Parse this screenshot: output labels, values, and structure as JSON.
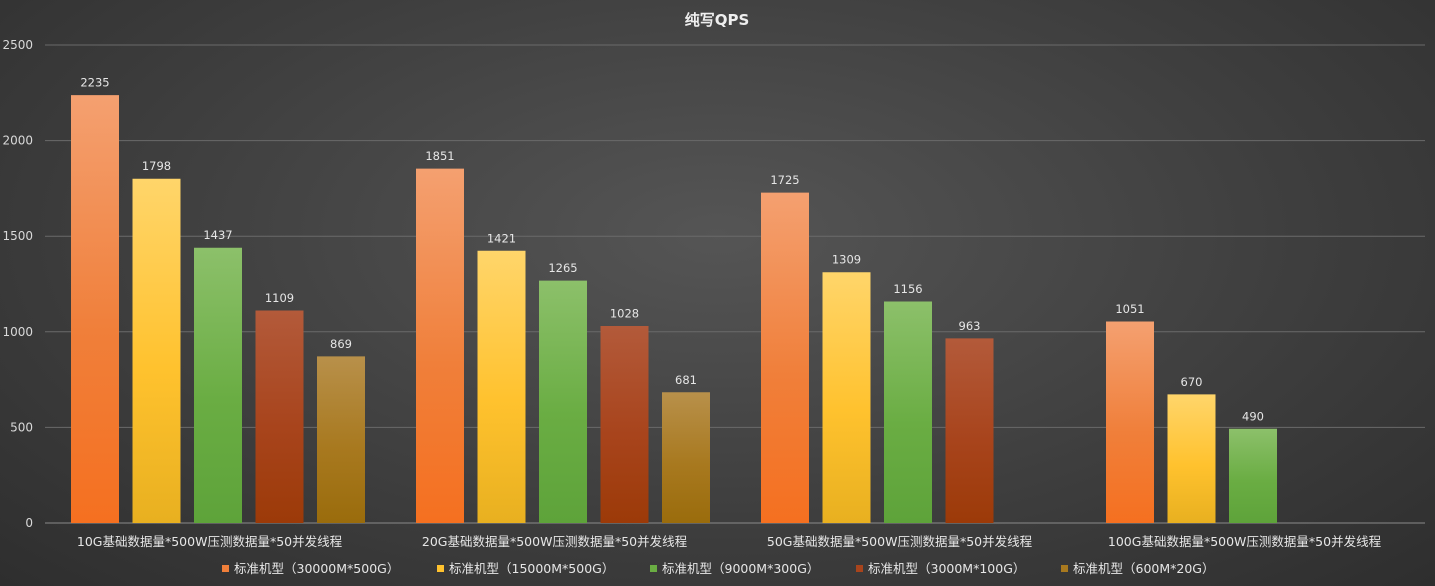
{
  "chart_data": {
    "type": "bar",
    "title": "纯写QPS",
    "categories": [
      "10G基础数据量*500W压测数据量*50并发线程",
      "20G基础数据量*500W压测数据量*50并发线程",
      "50G基础数据量*500W压测数据量*50并发线程",
      "100G基础数据量*500W压测数据量*50并发线程"
    ],
    "series": [
      {
        "name": "标准机型（30000M*500G）",
        "values": [
          2235,
          1851,
          1725,
          1051
        ],
        "color": "#f07f3a",
        "color_light": "#f4a070",
        "color_dark": "#f57020"
      },
      {
        "name": "标准机型（15000M*500G）",
        "values": [
          1798,
          1421,
          1309,
          670
        ],
        "color": "#ffc22e",
        "color_light": "#ffd56a",
        "color_dark": "#e8b020"
      },
      {
        "name": "标准机型（9000M*300G）",
        "values": [
          1437,
          1265,
          1156,
          490
        ],
        "color": "#6aad43",
        "color_light": "#8cc06a",
        "color_dark": "#5ea33a"
      },
      {
        "name": "标准机型（3000M*100G）",
        "values": [
          1109,
          1028,
          963,
          null
        ],
        "color": "#a8441c",
        "color_light": "#b35a3a",
        "color_dark": "#9c3a08"
      },
      {
        "name": "标准机型（600M*20G）",
        "values": [
          869,
          681,
          null,
          null
        ],
        "color": "#a8791f",
        "color_light": "#b8904a",
        "color_dark": "#9a6c0c"
      }
    ],
    "ylim": [
      0,
      2500
    ],
    "yticks": [
      0,
      500,
      1000,
      1500,
      2000,
      2500
    ],
    "grid": true,
    "legend_position": "bottom"
  }
}
